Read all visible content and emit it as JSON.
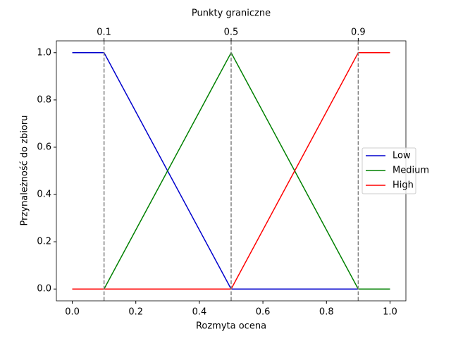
{
  "chart_data": {
    "type": "line",
    "xlabel": "Rozmyta ocena",
    "ylabel": "Przynależność do zbioru",
    "x2label": "Punkty graniczne",
    "x": [
      0,
      0.1,
      0.5,
      0.9,
      1
    ],
    "series": [
      {
        "name": "Low",
        "color": "mediumblue",
        "values": [
          1,
          1,
          0,
          0,
          0
        ]
      },
      {
        "name": "Medium",
        "color": "green",
        "values": [
          0,
          0,
          1,
          0,
          0
        ]
      },
      {
        "name": "High",
        "color": "red",
        "values": [
          0,
          0,
          0,
          1,
          1
        ]
      }
    ],
    "xlim": [
      -0.05,
      1.05
    ],
    "ylim": [
      -0.05,
      1.05
    ],
    "xticks": [
      {
        "value": 0,
        "label": "0.0"
      },
      0.2,
      0.4,
      0.6,
      0.8,
      {
        "value": 1,
        "label": "1.0"
      }
    ],
    "yticks": [
      {
        "value": 0,
        "label": "0.0"
      },
      0.2,
      0.4,
      0.6,
      0.8,
      {
        "value": 1,
        "label": "1.0"
      }
    ],
    "x2ticks": [
      0.1,
      0.5,
      0.9
    ],
    "threshold_color": "gray",
    "legend": "center right"
  }
}
